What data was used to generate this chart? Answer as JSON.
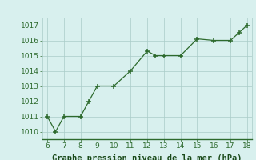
{
  "x": [
    6,
    6.5,
    7,
    8,
    8.5,
    9,
    10,
    11,
    12,
    12.5,
    13,
    14,
    15,
    16,
    17,
    17.5,
    18
  ],
  "y": [
    1011,
    1010,
    1011,
    1011,
    1012,
    1013,
    1013,
    1014,
    1015.3,
    1015,
    1015,
    1015,
    1016.1,
    1016,
    1016,
    1016.5,
    1017
  ],
  "line_color": "#2d6a2d",
  "marker_color": "#2d6a2d",
  "bg_color": "#d8f0ee",
  "grid_color": "#aaccc8",
  "xlabel": "Graphe pression niveau de la mer (hPa)",
  "xlabel_color": "#1a4a1a",
  "xlim": [
    5.7,
    18.3
  ],
  "ylim": [
    1009.5,
    1017.5
  ],
  "xticks": [
    6,
    7,
    8,
    9,
    10,
    11,
    12,
    13,
    14,
    15,
    16,
    17,
    18
  ],
  "yticks": [
    1010,
    1011,
    1012,
    1013,
    1014,
    1015,
    1016,
    1017
  ],
  "tick_color": "#2d6a2d",
  "tick_fontsize": 6.5,
  "xlabel_fontsize": 7.5
}
